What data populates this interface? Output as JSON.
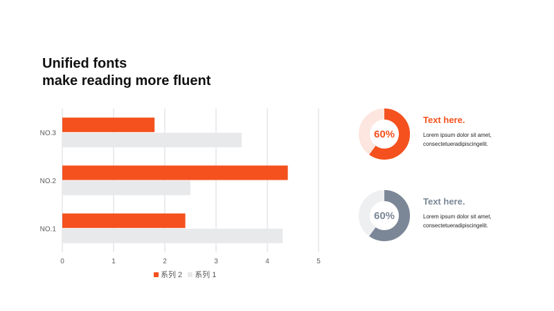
{
  "title": {
    "line1": "Unified fonts",
    "line2": "make reading more fluent"
  },
  "colors": {
    "accent": "#f4511e",
    "light_gray": "#e8e9eb",
    "slate": "#7b8796",
    "accent_track": "#fde6df",
    "slate_track": "#eeeff1",
    "grid": "#d9d9d9",
    "axis_text": "#595959"
  },
  "chart_data": {
    "type": "bar",
    "orientation": "horizontal",
    "categories": [
      "NO.1",
      "NO.2",
      "NO.3"
    ],
    "series": [
      {
        "name": "系列 1",
        "values": [
          4.3,
          2.5,
          3.5
        ],
        "color": "#e8e9eb"
      },
      {
        "name": "系列 2",
        "values": [
          2.4,
          4.4,
          1.8
        ],
        "color": "#f4511e"
      }
    ],
    "xlim": [
      0,
      5
    ],
    "xticks": [
      "0",
      "1",
      "2",
      "3",
      "4",
      "5"
    ],
    "grid": true,
    "legend_placement": "bottom",
    "legend": [
      "系列 2",
      "系列 1"
    ]
  },
  "stats": [
    {
      "percent": "60%",
      "fraction": 0.6,
      "heading": "Text here.",
      "body_line1": "Lorem ipsum  dolor sit amet,",
      "body_line2": "consectetueradipiscingelit.",
      "color": "#f4511e",
      "track": "#fde6df"
    },
    {
      "percent": "60%",
      "fraction": 0.6,
      "heading": "Text here.",
      "body_line1": "Lorem ipsum  dolor sit amet,",
      "body_line2": "consectetueradipiscingelit.",
      "color": "#7b8796",
      "track": "#eeeff1"
    }
  ]
}
